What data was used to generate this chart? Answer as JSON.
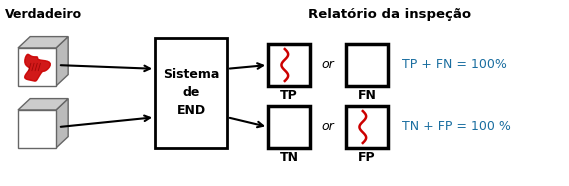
{
  "title": "Relatório da inspeção",
  "verdadeiro_label": "Verdadeiro",
  "sistema_label": "Sistema\nde\nEND",
  "tp_label": "TP",
  "fn_label": "FN",
  "tn_label": "TN",
  "fp_label": "FP",
  "or_label": "or",
  "eq1": "TP + FN = 100%",
  "eq2": "TN + FP = 100 %",
  "bg_color": "#ffffff",
  "box_color": "#000000",
  "arrow_color": "#000000",
  "red_color": "#cc0000",
  "text_color": "#000000",
  "title_color": "#000000",
  "eq_color": "#1a6ea0",
  "cube_edge": "#666666",
  "cube_top": "#cccccc",
  "cube_right": "#bbbbbb",
  "cube_front": "#ffffff"
}
